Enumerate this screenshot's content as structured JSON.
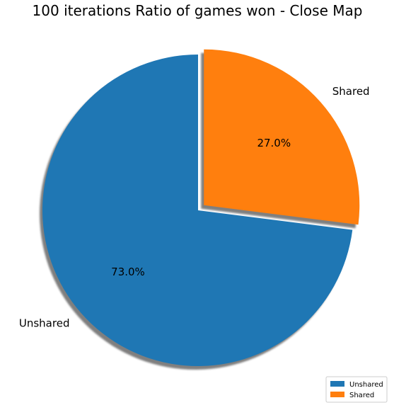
{
  "chart_data": {
    "type": "pie",
    "title": "100 iterations Ratio of games won - Close Map",
    "categories": [
      "Unshared",
      "Shared"
    ],
    "values": [
      73.0,
      27.0
    ],
    "percent_labels": [
      "73.0%",
      "27.0%"
    ],
    "colors": [
      "#1f77b4",
      "#ff7f0e"
    ],
    "explode": [
      0,
      0.05
    ],
    "shadow": true,
    "start_angle_deg": 90,
    "direction": "counterclockwise",
    "legend": {
      "placement": "lower-right",
      "entries": [
        "Unshared",
        "Shared"
      ]
    }
  }
}
